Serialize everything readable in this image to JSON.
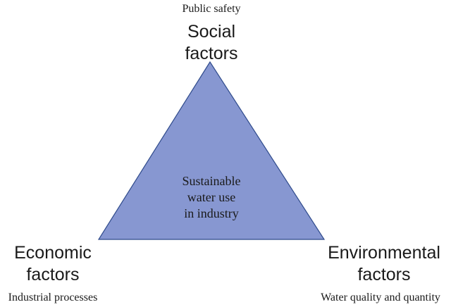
{
  "diagram": {
    "center": {
      "line1": "Sustainable",
      "line2": "water use",
      "line3": "in industry"
    },
    "top": {
      "note": "Public safety",
      "title_line1": "Social",
      "title_line2": "factors"
    },
    "left": {
      "title_line1": "Economic",
      "title_line2": "factors",
      "note": "Industrial processes"
    },
    "right": {
      "title_line1": "Environmental",
      "title_line2": "factors",
      "note": "Water quality and quantity"
    }
  },
  "colors": {
    "triangle_fill": "#8797D1",
    "triangle_stroke": "#2E4A8B",
    "text": "#1a1a1a"
  }
}
